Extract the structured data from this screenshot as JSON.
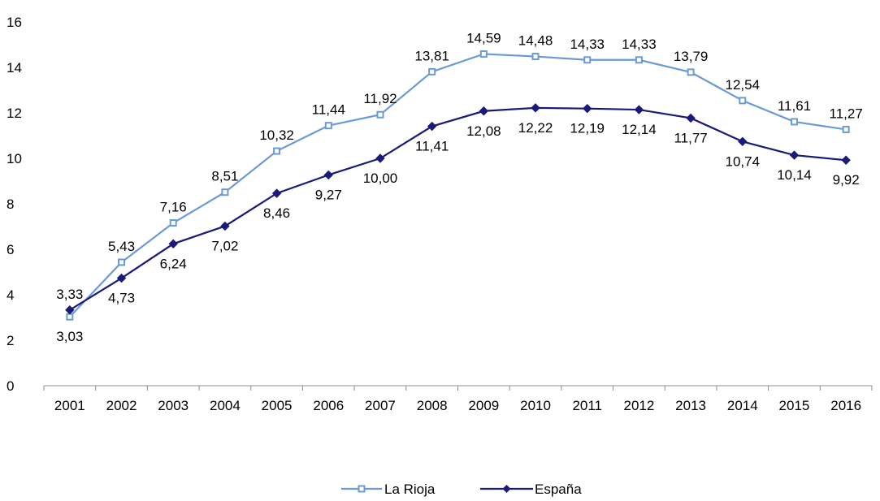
{
  "chart_data": {
    "type": "line",
    "categories": [
      "2001",
      "2002",
      "2003",
      "2004",
      "2005",
      "2006",
      "2007",
      "2008",
      "2009",
      "2010",
      "2011",
      "2012",
      "2013",
      "2014",
      "2015",
      "2016"
    ],
    "ylim": [
      0,
      16
    ],
    "yticks": [
      0,
      2,
      4,
      6,
      8,
      10,
      12,
      14,
      16
    ],
    "grid": false,
    "legend_position": "bottom-center",
    "series": [
      {
        "name": "La Rioja",
        "color": "#6a9bd4",
        "marker": "square",
        "values": [
          3.03,
          5.43,
          7.16,
          8.51,
          10.32,
          11.44,
          11.92,
          13.81,
          14.59,
          14.48,
          14.33,
          14.33,
          13.79,
          12.54,
          11.61,
          11.27
        ],
        "labels": [
          "3,03",
          "5,43",
          "7,16",
          "8,51",
          "10,32",
          "11,44",
          "11,92",
          "13,81",
          "14,59",
          "14,48",
          "14,33",
          "14,33",
          "13,79",
          "12,54",
          "11,61",
          "11,27"
        ]
      },
      {
        "name": "España",
        "color": "#1a1a78",
        "marker": "diamond",
        "values": [
          3.33,
          4.73,
          6.24,
          7.02,
          8.46,
          9.27,
          10.0,
          11.41,
          12.08,
          12.22,
          12.19,
          12.14,
          11.77,
          10.74,
          10.14,
          9.92
        ],
        "labels": [
          "3,33",
          "4,73",
          "6,24",
          "7,02",
          "8,46",
          "9,27",
          "10,00",
          "11,41",
          "12,08",
          "12,22",
          "12,19",
          "12,14",
          "11,77",
          "10,74",
          "10,14",
          "9,92"
        ]
      }
    ]
  }
}
